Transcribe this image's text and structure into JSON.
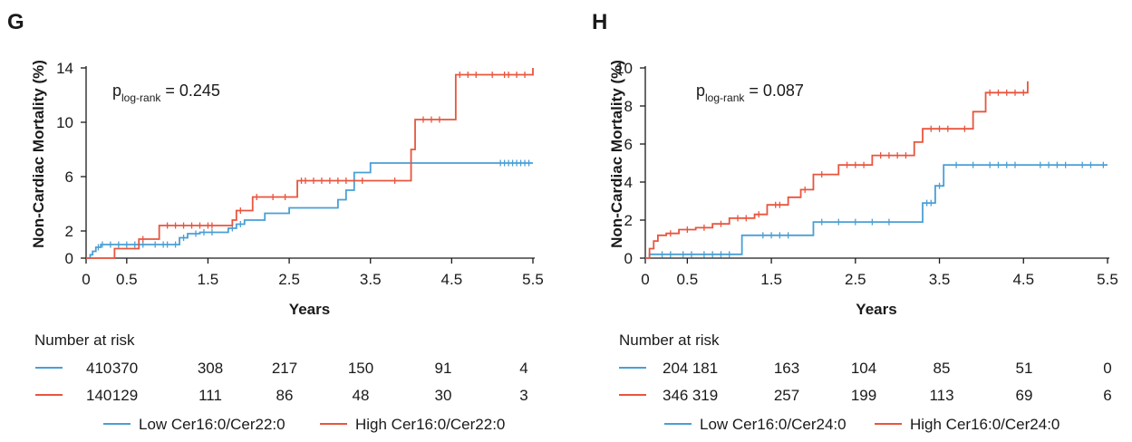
{
  "colors": {
    "low": "#4a9fd5",
    "high": "#e8553e",
    "axis": "#1a1a1a"
  },
  "panels": [
    {
      "letter": "G",
      "pvalue": {
        "p": "p",
        "sub": "log-rank",
        "rest": " = 0.245"
      },
      "chart_data": {
        "type": "line",
        "subtype": "kaplan-meier step",
        "xlabel": "Years",
        "ylabel": "Non-Cardiac Mortality (%)",
        "xlim": [
          0,
          5.5
        ],
        "ylim": [
          0,
          14
        ],
        "xticks": [
          "0",
          "0.5",
          "1.5",
          "2.5",
          "3.5",
          "4.5",
          "5.5"
        ],
        "xtick_values": [
          0,
          0.5,
          1.5,
          2.5,
          3.5,
          4.5,
          5.5
        ],
        "yticks": [
          "0",
          "2",
          "6",
          "10",
          "14"
        ],
        "ytick_values": [
          0,
          2,
          6,
          10,
          14
        ],
        "grid": false,
        "legend_position": "bottom",
        "series": [
          {
            "name": "Low Cer16:0/Cer22:0",
            "color": "#4a9fd5",
            "steps": [
              [
                0,
                0
              ],
              [
                0.05,
                0.25
              ],
              [
                0.08,
                0.5
              ],
              [
                0.12,
                0.8
              ],
              [
                0.18,
                1.0
              ],
              [
                0.4,
                1.0
              ],
              [
                1.05,
                1.0
              ],
              [
                1.15,
                1.5
              ],
              [
                1.25,
                1.8
              ],
              [
                1.4,
                1.9
              ],
              [
                1.75,
                2.2
              ],
              [
                1.85,
                2.5
              ],
              [
                1.95,
                2.8
              ],
              [
                2.2,
                3.3
              ],
              [
                2.5,
                3.7
              ],
              [
                3.1,
                4.3
              ],
              [
                3.2,
                5.0
              ],
              [
                3.3,
                6.3
              ],
              [
                3.5,
                7.0
              ],
              [
                5.5,
                7.0
              ]
            ],
            "censored": [
              0.15,
              0.2,
              0.3,
              0.4,
              0.5,
              0.6,
              0.7,
              0.85,
              0.95,
              1.0,
              1.1,
              1.2,
              1.35,
              1.45,
              1.55,
              1.8,
              1.9,
              5.1,
              5.15,
              5.2,
              5.25,
              5.3,
              5.35,
              5.4,
              5.45
            ]
          },
          {
            "name": "High Cer16:0/Cer22:0",
            "color": "#e8553e",
            "steps": [
              [
                0,
                0
              ],
              [
                0.35,
                0.7
              ],
              [
                0.65,
                1.4
              ],
              [
                0.9,
                2.4
              ],
              [
                1.6,
                2.4
              ],
              [
                1.8,
                2.8
              ],
              [
                1.85,
                3.5
              ],
              [
                2.05,
                4.5
              ],
              [
                2.6,
                5.7
              ],
              [
                3.5,
                5.7
              ],
              [
                4.0,
                8.0
              ],
              [
                4.05,
                10.2
              ],
              [
                4.55,
                13.5
              ],
              [
                5.5,
                14.0
              ]
            ],
            "censored": [
              0.7,
              1.0,
              1.1,
              1.2,
              1.3,
              1.4,
              1.5,
              1.55,
              1.9,
              2.1,
              2.3,
              2.45,
              2.65,
              2.7,
              2.8,
              2.9,
              3.0,
              3.1,
              3.2,
              3.4,
              3.8,
              4.15,
              4.25,
              4.35,
              4.6,
              4.7,
              4.8,
              5.0,
              5.15,
              5.2,
              5.3,
              5.4
            ]
          }
        ]
      },
      "risk": {
        "title": "Number at risk",
        "rows": [
          {
            "color": "#4a9fd5",
            "values": [
              "410",
              "370",
              "308",
              "217",
              "150",
              "91",
              "4"
            ]
          },
          {
            "color": "#e8553e",
            "values": [
              "140",
              "129",
              "111",
              "86",
              "48",
              "30",
              "3"
            ]
          }
        ]
      },
      "legend": [
        "Low Cer16:0/Cer22:0",
        "High Cer16:0/Cer22:0"
      ]
    },
    {
      "letter": "H",
      "pvalue": {
        "p": "p",
        "sub": "log-rank",
        "rest": " = 0.087"
      },
      "chart_data": {
        "type": "line",
        "subtype": "kaplan-meier step",
        "xlabel": "Years",
        "ylabel": "Non-Cardiac Mortality (%)",
        "xlim": [
          0,
          5.5
        ],
        "ylim": [
          0,
          10
        ],
        "xticks": [
          "0",
          "0.5",
          "1.5",
          "2.5",
          "3.5",
          "4.5",
          "5.5"
        ],
        "xtick_values": [
          0,
          0.5,
          1.5,
          2.5,
          3.5,
          4.5,
          5.5
        ],
        "yticks": [
          "0",
          "2",
          "4",
          "6",
          "8",
          "10"
        ],
        "ytick_values": [
          0,
          2,
          4,
          6,
          8,
          10
        ],
        "grid": false,
        "legend_position": "bottom",
        "series": [
          {
            "name": "Low Cer16:0/Cer24:0",
            "color": "#4a9fd5",
            "steps": [
              [
                0,
                0
              ],
              [
                0.05,
                0.2
              ],
              [
                1.15,
                1.2
              ],
              [
                2.0,
                1.9
              ],
              [
                3.3,
                2.9
              ],
              [
                3.45,
                3.8
              ],
              [
                3.55,
                4.9
              ],
              [
                5.5,
                4.9
              ]
            ],
            "censored": [
              0.2,
              0.3,
              0.45,
              0.55,
              0.7,
              0.8,
              0.9,
              1.0,
              1.4,
              1.5,
              1.6,
              1.7,
              2.1,
              2.3,
              2.5,
              2.7,
              2.9,
              3.35,
              3.4,
              3.5,
              3.7,
              3.9,
              4.1,
              4.2,
              4.3,
              4.4,
              4.7,
              4.8,
              4.9,
              5.0,
              5.2,
              5.3,
              5.45
            ]
          },
          {
            "name": "High Cer16:0/Cer24:0",
            "color": "#e8553e",
            "steps": [
              [
                0,
                0
              ],
              [
                0.05,
                0.5
              ],
              [
                0.1,
                0.9
              ],
              [
                0.15,
                1.2
              ],
              [
                0.25,
                1.3
              ],
              [
                0.4,
                1.5
              ],
              [
                0.6,
                1.6
              ],
              [
                0.8,
                1.8
              ],
              [
                1.0,
                2.1
              ],
              [
                1.3,
                2.3
              ],
              [
                1.45,
                2.8
              ],
              [
                1.7,
                3.2
              ],
              [
                1.85,
                3.6
              ],
              [
                2.0,
                4.4
              ],
              [
                2.3,
                4.9
              ],
              [
                2.7,
                5.4
              ],
              [
                3.2,
                6.1
              ],
              [
                3.3,
                6.8
              ],
              [
                3.9,
                7.7
              ],
              [
                4.05,
                8.7
              ],
              [
                4.55,
                9.3
              ]
            ],
            "censored": [
              0.3,
              0.5,
              0.7,
              0.9,
              1.1,
              1.2,
              1.35,
              1.55,
              1.6,
              1.9,
              2.1,
              2.4,
              2.5,
              2.6,
              2.8,
              2.9,
              3.0,
              3.1,
              3.4,
              3.5,
              3.6,
              3.8,
              4.1,
              4.2,
              4.3,
              4.4,
              4.5
            ]
          }
        ]
      },
      "risk": {
        "title": "Number at risk",
        "rows": [
          {
            "color": "#4a9fd5",
            "values": [
              "204",
              "181",
              "163",
              "104",
              "85",
              "51",
              "0"
            ]
          },
          {
            "color": "#e8553e",
            "values": [
              "346",
              "319",
              "257",
              "199",
              "113",
              "69",
              "6"
            ]
          }
        ]
      },
      "legend": [
        "Low Cer16:0/Cer24:0",
        "High Cer16:0/Cer24:0"
      ]
    }
  ]
}
